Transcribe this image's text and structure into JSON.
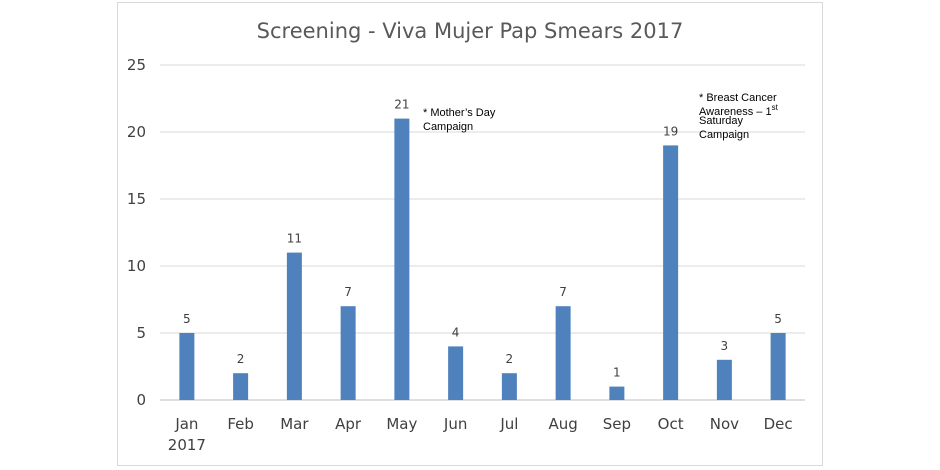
{
  "chart_data": {
    "type": "bar",
    "title": "Screening - Viva Mujer Pap Smears 2017",
    "categories": [
      "Jan 2017",
      "Feb",
      "Mar",
      "Apr",
      "May",
      "Jun",
      "Jul",
      "Aug",
      "Sep",
      "Oct",
      "Nov",
      "Dec"
    ],
    "values": [
      5,
      2,
      11,
      7,
      21,
      4,
      2,
      7,
      1,
      19,
      3,
      5
    ],
    "ylim": [
      0,
      25
    ],
    "yticks": [
      0,
      5,
      10,
      15,
      20,
      25
    ],
    "grid": true,
    "bar_color": "#4f81bd",
    "annotations": [
      {
        "category": "May",
        "lines": [
          "* Mother’s Day",
          "Campaign"
        ]
      },
      {
        "category": "Oct",
        "lines": [
          "* Breast Cancer",
          "Awareness – 1",
          "Saturday",
          "Campaign"
        ],
        "superscript": "st"
      }
    ]
  }
}
